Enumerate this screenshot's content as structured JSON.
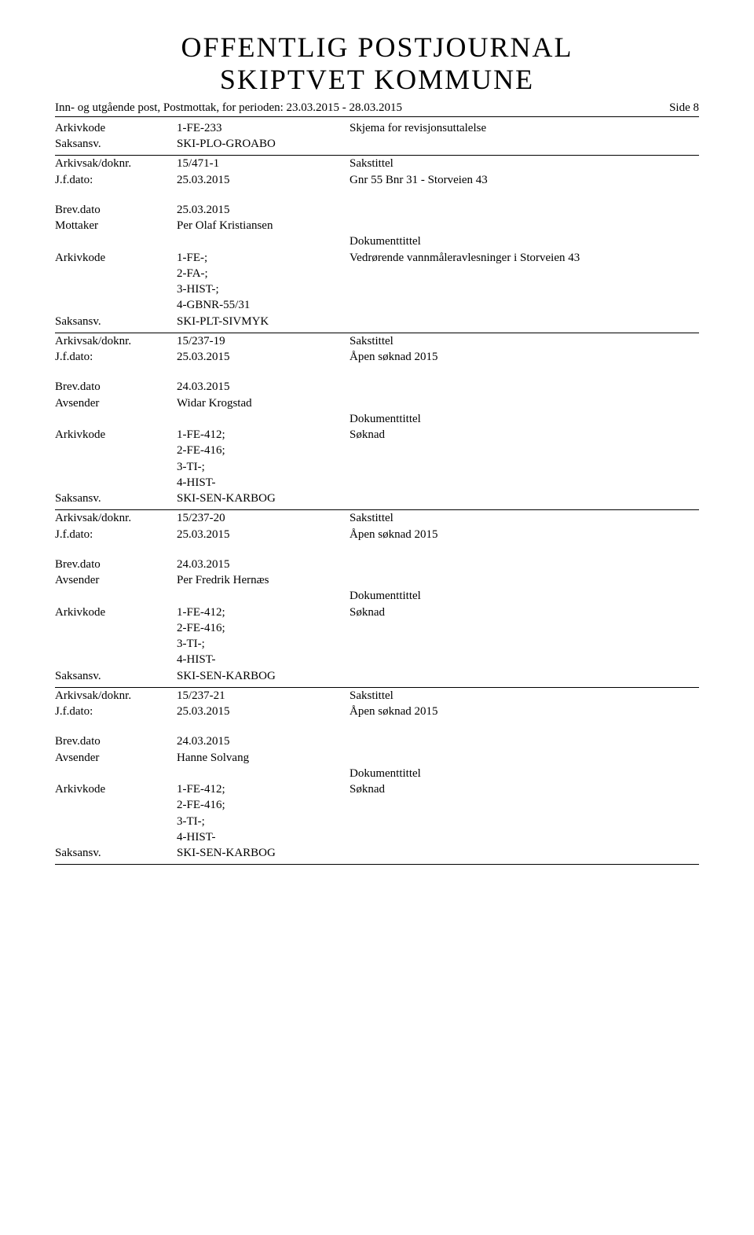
{
  "header": {
    "title_line1": "OFFENTLIG POSTJOURNAL",
    "title_line2": "SKIPTVET KOMMUNE",
    "subheader": "Inn- og utgående post, Postmottak, for perioden: 23.03.2015 - 28.03.2015",
    "page_label": "Side 8"
  },
  "labels": {
    "arkivkode": "Arkivkode",
    "saksansv": "Saksansv.",
    "arkivsak": "Arkivsak/doknr.",
    "jfdato": "J.f.dato:",
    "brevdato": "Brev.dato",
    "mottaker": "Mottaker",
    "avsender": "Avsender",
    "sakstittel": "Sakstittel",
    "dokumenttittel": "Dokumenttittel"
  },
  "top_block": {
    "arkivkode": "1-FE-233",
    "arkivkode_desc": "Skjema for revisjonsuttalelse",
    "saksansv": "SKI-PLO-GROABO"
  },
  "records": [
    {
      "arkivsak": "15/471-1",
      "jfdato": "25.03.2015",
      "sakstittel_desc": "Gnr 55 Bnr 31 - Storveien 43",
      "brevdato": "25.03.2015",
      "party_label": "Mottaker",
      "party_value": "Per Olaf Kristiansen",
      "arkivkode": "1-FE-;\n2-FA-;\n3-HIST-;\n4-GBNR-55/31",
      "dokumenttittel_desc": "Vedrørende vannmåleravlesninger i Storveien 43",
      "saksansv": "SKI-PLT-SIVMYK"
    },
    {
      "arkivsak": "15/237-19",
      "jfdato": "25.03.2015",
      "sakstittel_desc": "Åpen søknad 2015",
      "brevdato": "24.03.2015",
      "party_label": "Avsender",
      "party_value": "Widar Krogstad",
      "arkivkode": "1-FE-412;\n2-FE-416;\n3-TI-;\n4-HIST-",
      "dokumenttittel_desc": "Søknad",
      "saksansv": "SKI-SEN-KARBOG"
    },
    {
      "arkivsak": "15/237-20",
      "jfdato": "25.03.2015",
      "sakstittel_desc": "Åpen søknad 2015",
      "brevdato": "24.03.2015",
      "party_label": "Avsender",
      "party_value": "Per Fredrik Hernæs",
      "arkivkode": "1-FE-412;\n2-FE-416;\n3-TI-;\n4-HIST-",
      "dokumenttittel_desc": "Søknad",
      "saksansv": "SKI-SEN-KARBOG"
    },
    {
      "arkivsak": "15/237-21",
      "jfdato": "25.03.2015",
      "sakstittel_desc": "Åpen søknad 2015",
      "brevdato": "24.03.2015",
      "party_label": "Avsender",
      "party_value": "Hanne Solvang",
      "arkivkode": "1-FE-412;\n2-FE-416;\n3-TI-;\n4-HIST-",
      "dokumenttittel_desc": "Søknad",
      "saksansv": "SKI-SEN-KARBOG"
    }
  ]
}
